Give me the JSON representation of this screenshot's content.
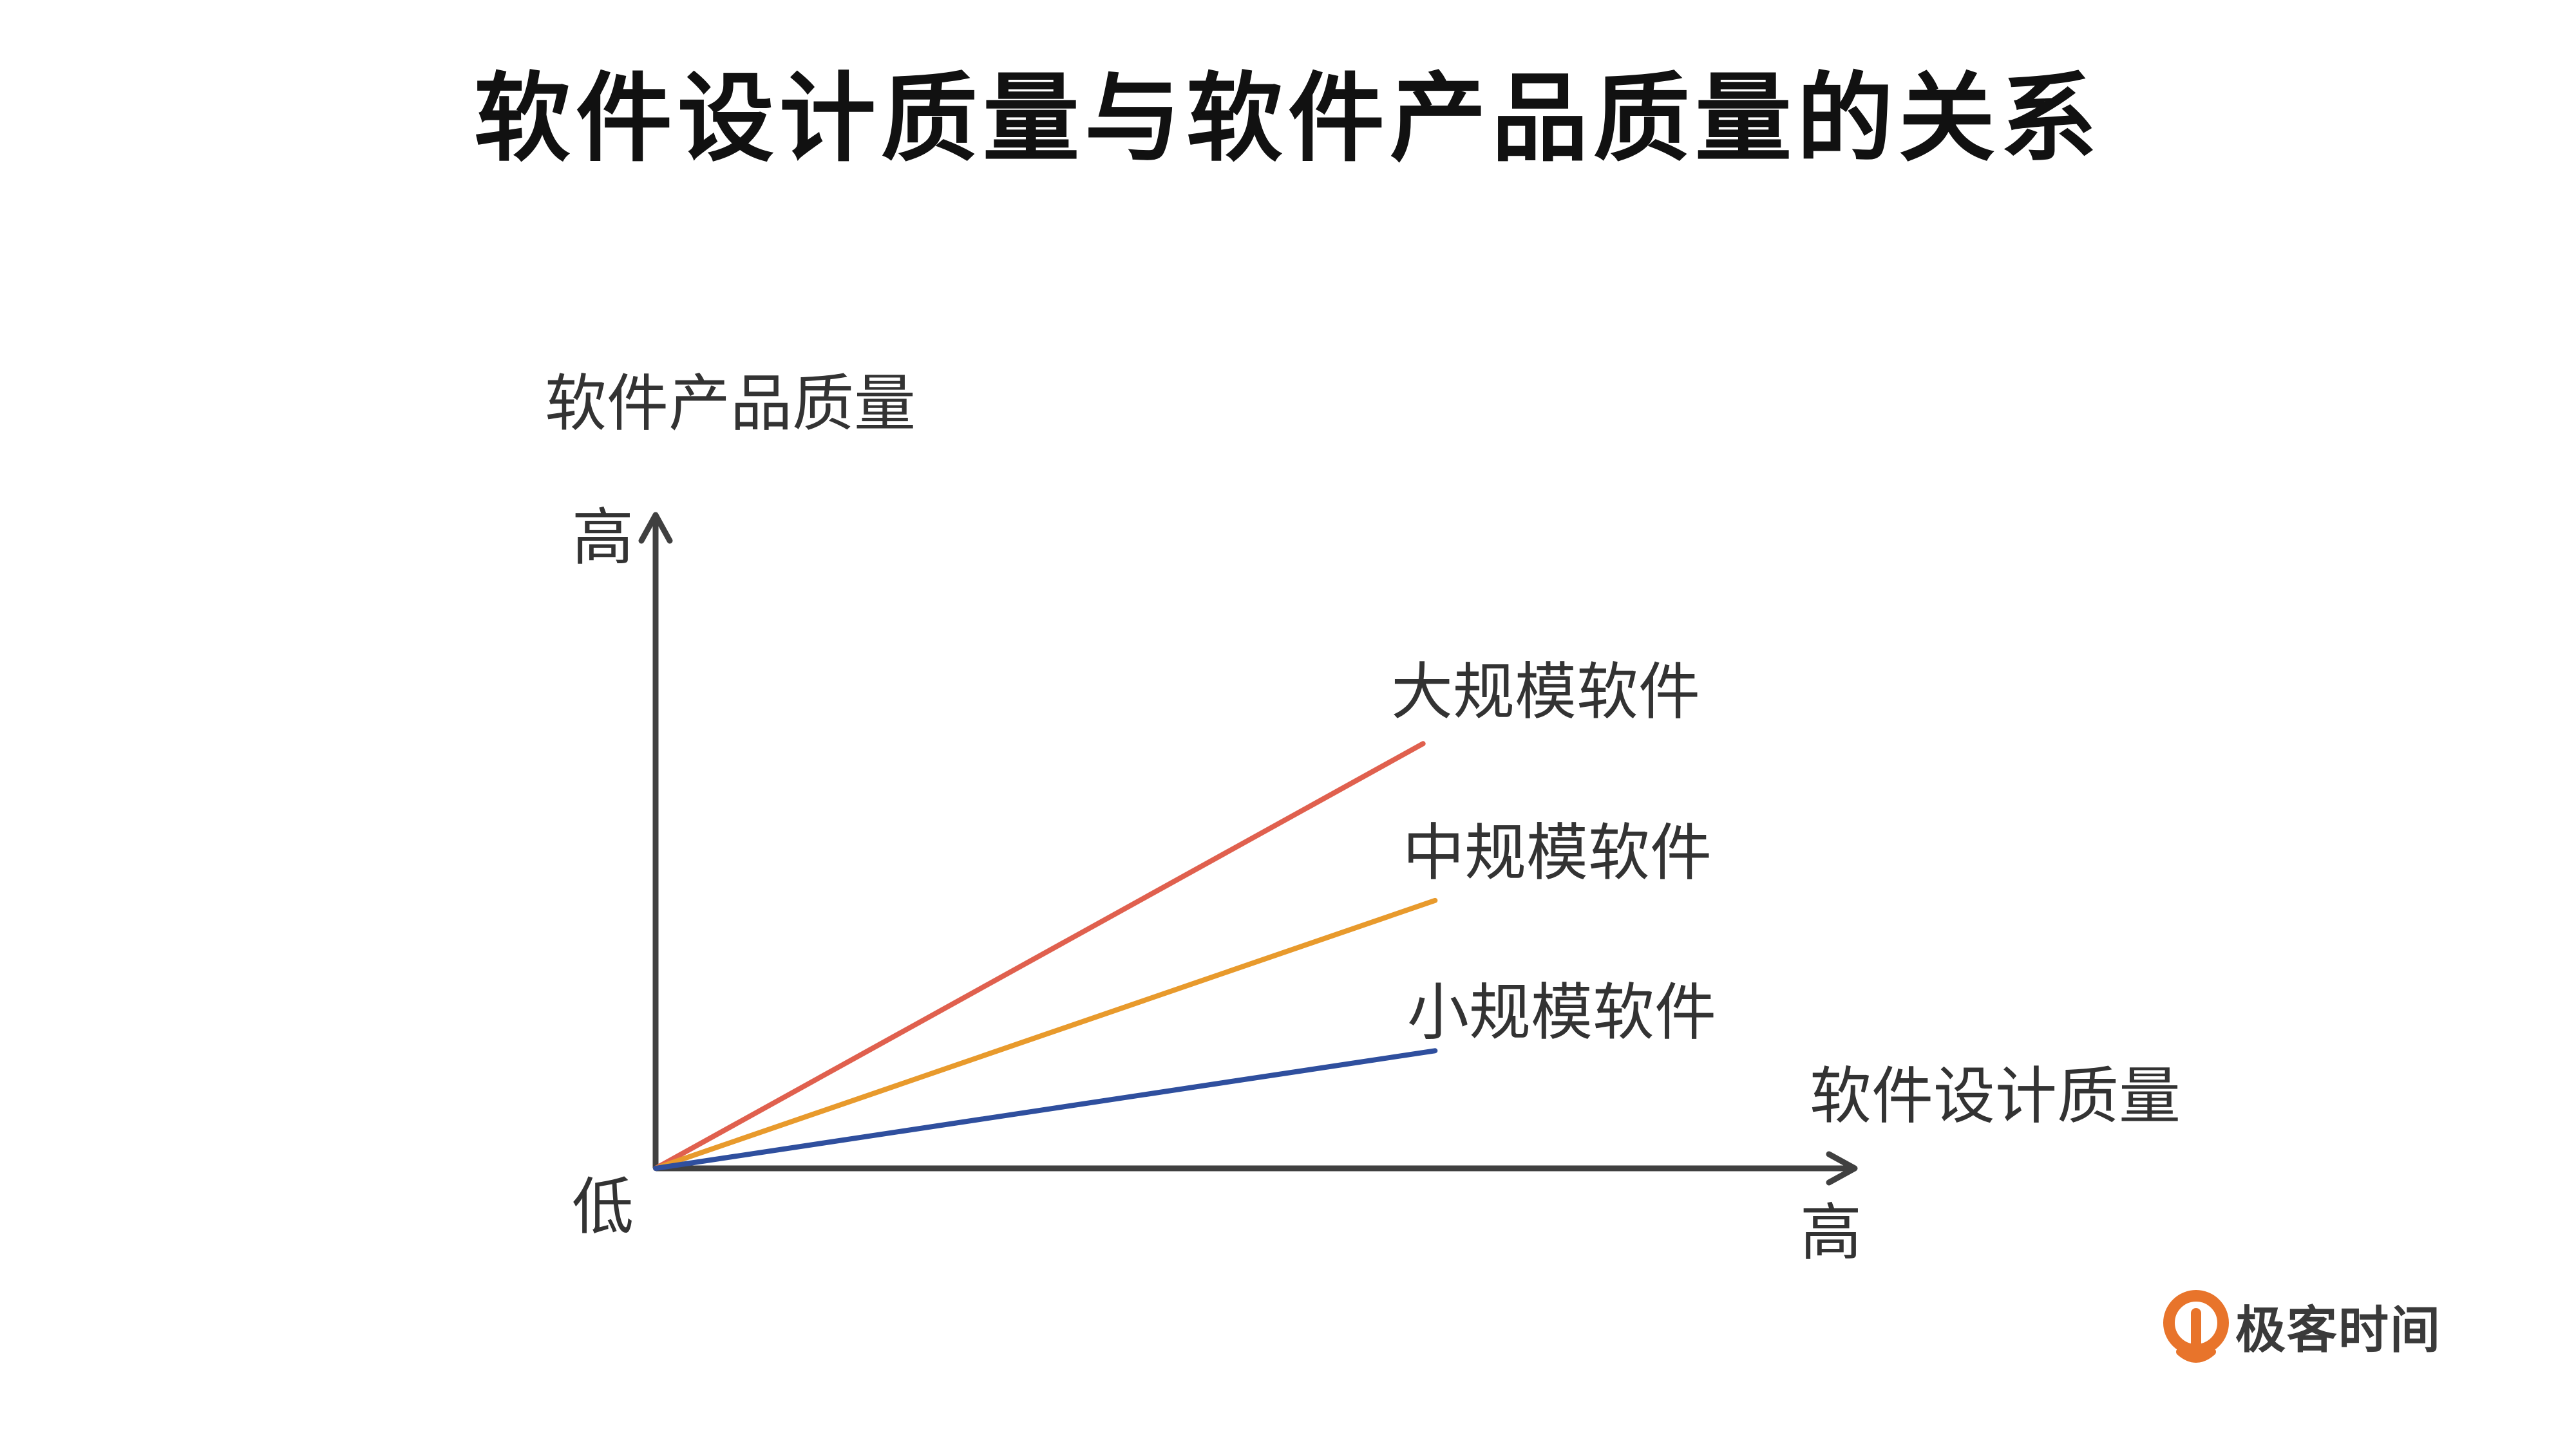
{
  "title": "软件设计质量与软件产品质量的关系",
  "chart_data": {
    "type": "line",
    "xlabel": "软件设计质量",
    "ylabel": "软件产品质量",
    "x_low_label": "低",
    "x_high_label": "高",
    "y_high_label": "高",
    "series": [
      {
        "name": "大规模软件",
        "color": "#e0604e",
        "x": [
          0,
          0.64
        ],
        "y": [
          0,
          0.65
        ]
      },
      {
        "name": "中规模软件",
        "color": "#e89a2c",
        "x": [
          0,
          0.65
        ],
        "y": [
          0,
          0.41
        ]
      },
      {
        "name": "小规模软件",
        "color": "#2f4f9e",
        "x": [
          0,
          0.65
        ],
        "y": [
          0,
          0.18
        ]
      }
    ],
    "xlim": [
      0,
      1
    ],
    "ylim": [
      0,
      1
    ],
    "axis_color": "#404040"
  },
  "logo": {
    "text": "极客时间",
    "color": "#e8742b"
  }
}
